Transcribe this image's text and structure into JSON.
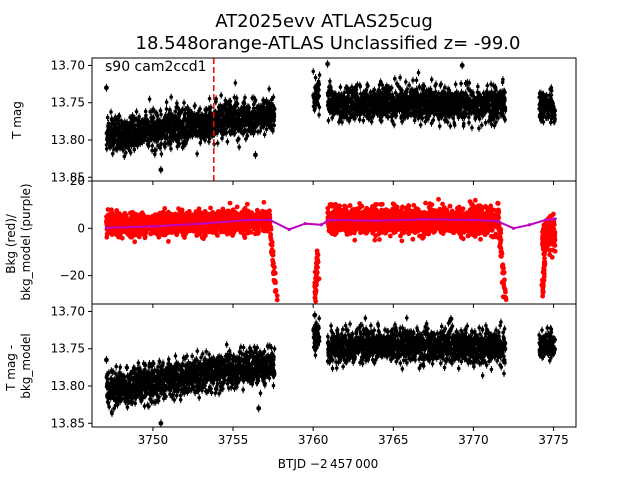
{
  "title_line1": "AT2025evv  ATLAS25cug",
  "title_line2": "18.548orange-ATLAS Unclassified z= -99.0",
  "xlabel": "BTJD −2 457 000",
  "annotation": "s90 cam2ccd1",
  "colors": {
    "data": "#000000",
    "bkg": "#ff0000",
    "bkg_model": "#bf00bf",
    "marker_line": "#ff0000"
  },
  "chart_data": [
    {
      "type": "scatter",
      "panel": "top",
      "ylabel": "T mag",
      "y_inverted": true,
      "xlim": [
        3746.2,
        3776.4
      ],
      "ylim": [
        13.855,
        13.69
      ],
      "xticks": [
        3750,
        3755,
        3760,
        3765,
        3770,
        3775
      ],
      "yticks": [
        13.7,
        13.75,
        13.8,
        13.85
      ],
      "ytick_labels": [
        "13.70",
        "13.75",
        "13.80",
        "13.85"
      ],
      "vline_x": 3753.8,
      "segments": [
        {
          "x_start": 3747.1,
          "x_end": 3757.6,
          "y_start": 13.795,
          "y_end": 13.765,
          "scatter": 0.022
        },
        {
          "x_start": 3760.0,
          "x_end": 3760.4,
          "y_start": 13.74,
          "y_end": 13.74,
          "scatter": 0.02
        },
        {
          "x_start": 3760.9,
          "x_end": 3772.0,
          "y_start": 13.75,
          "y_end": 13.752,
          "scatter": 0.02
        },
        {
          "x_start": 3774.1,
          "x_end": 3775.1,
          "y_start": 13.755,
          "y_end": 13.755,
          "scatter": 0.018
        }
      ],
      "outliers": [
        {
          "x": 3747.1,
          "y": 13.73
        },
        {
          "x": 3760.9,
          "y": 13.698
        },
        {
          "x": 3769.3,
          "y": 13.7
        },
        {
          "x": 3756.4,
          "y": 13.82
        },
        {
          "x": 3750.5,
          "y": 13.84
        }
      ]
    },
    {
      "type": "scatter",
      "panel": "middle",
      "ylabel": "Bkg (red)/\nbkg_model (purple)",
      "xlim": [
        3746.2,
        3776.4
      ],
      "ylim": [
        -32,
        20
      ],
      "yticks": [
        -20,
        0,
        20
      ],
      "ytick_labels": [
        "−20",
        "0",
        "20"
      ],
      "bkg_segments": [
        {
          "x_start": 3747.1,
          "x_end": 3757.3,
          "y_start": 1.5,
          "y_end": 3.0,
          "scatter": 4.5
        },
        {
          "x_start": 3760.9,
          "x_end": 3771.6,
          "y_start": 3.5,
          "y_end": 3.0,
          "scatter": 5.5
        },
        {
          "x_start": 3774.3,
          "x_end": 3775.1,
          "y_start": -3.0,
          "y_end": -3.0,
          "scatter": 8
        }
      ],
      "bkg_drops": [
        {
          "x_start": 3757.3,
          "x_end": 3757.7,
          "y_start": 2,
          "y_end": -30
        },
        {
          "x_start": 3760.1,
          "x_end": 3760.3,
          "y_start": -30,
          "y_end": -10
        },
        {
          "x_start": 3771.6,
          "x_end": 3772.0,
          "y_start": 2,
          "y_end": -30
        },
        {
          "x_start": 3774.3,
          "x_end": 3774.5,
          "y_start": -28,
          "y_end": -5
        }
      ],
      "bkg_model": {
        "x": [
          3747.1,
          3750,
          3753,
          3756,
          3757.3,
          3758.5,
          3759.5,
          3760.5,
          3761,
          3764,
          3767,
          3770,
          3771.5,
          3772.5,
          3773.5,
          3774.5,
          3775.1
        ],
        "y": [
          0.2,
          0.8,
          2.0,
          3.5,
          3.5,
          -0.5,
          2.0,
          1.5,
          3.5,
          3.2,
          3.8,
          3.5,
          3.0,
          0.0,
          1.5,
          3.5,
          4.0
        ]
      }
    },
    {
      "type": "scatter",
      "panel": "bottom",
      "ylabel": "T mag -\nbkg_model",
      "y_inverted": true,
      "xlim": [
        3746.2,
        3776.4
      ],
      "ylim": [
        13.855,
        13.69
      ],
      "yticks": [
        13.7,
        13.75,
        13.8,
        13.85
      ],
      "ytick_labels": [
        "13.70",
        "13.75",
        "13.80",
        "13.85"
      ],
      "xticks": [
        3750,
        3755,
        3760,
        3765,
        3770,
        3775
      ],
      "xtick_labels": [
        "3750",
        "3755",
        "3760",
        "3765",
        "3770",
        "3775"
      ],
      "segments": [
        {
          "x_start": 3747.1,
          "x_end": 3757.6,
          "y_start": 13.805,
          "y_end": 13.77,
          "scatter": 0.022
        },
        {
          "x_start": 3760.0,
          "x_end": 3760.4,
          "y_start": 13.735,
          "y_end": 13.735,
          "scatter": 0.02
        },
        {
          "x_start": 3760.9,
          "x_end": 3772.0,
          "y_start": 13.745,
          "y_end": 13.747,
          "scatter": 0.02
        },
        {
          "x_start": 3774.1,
          "x_end": 3775.1,
          "y_start": 13.745,
          "y_end": 13.745,
          "scatter": 0.018
        }
      ],
      "outliers": [
        {
          "x": 3747.1,
          "y": 13.765
        },
        {
          "x": 3760.1,
          "y": 13.705
        },
        {
          "x": 3768.6,
          "y": 13.71
        },
        {
          "x": 3756.6,
          "y": 13.83
        },
        {
          "x": 3750.5,
          "y": 13.85
        }
      ]
    }
  ]
}
